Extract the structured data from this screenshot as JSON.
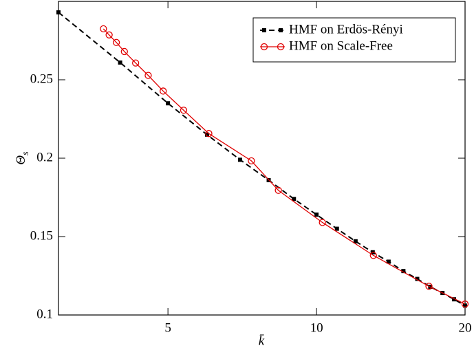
{
  "chart_data": {
    "type": "line",
    "xlabel": "k̄",
    "ylabel": "Θ",
    "ylabel_subscript": "s",
    "xscale": "log",
    "xlim": [
      3,
      20
    ],
    "xticks": [
      5,
      10,
      20
    ],
    "ylim": [
      0.1,
      0.3
    ],
    "yticks": [
      0.1,
      0.15,
      0.2,
      0.25
    ],
    "legend": "upper right",
    "series": [
      {
        "name": "HMF on Erdös-Rényi",
        "color": "#000000",
        "dash": true,
        "marker": "square",
        "x": [
          3,
          4,
          5,
          6,
          7,
          8,
          9,
          10,
          11,
          12,
          13,
          14,
          15,
          16,
          17,
          18,
          19,
          20
        ],
        "values": [
          0.293,
          0.261,
          0.235,
          0.215,
          0.199,
          0.186,
          0.174,
          0.164,
          0.155,
          0.147,
          0.14,
          0.134,
          0.128,
          0.123,
          0.118,
          0.114,
          0.11,
          0.106
        ]
      },
      {
        "name": "HMF on Scale-Free",
        "color": "#e00000",
        "dash": false,
        "marker": "circle",
        "x": [
          3.7,
          3.8,
          3.93,
          4.08,
          4.3,
          4.56,
          4.89,
          5.38,
          6.05,
          7.38,
          8.37,
          10.28,
          13.04,
          16.9,
          20
        ],
        "values": [
          0.2825,
          0.2786,
          0.2738,
          0.268,
          0.2607,
          0.2528,
          0.2428,
          0.2306,
          0.2157,
          0.1983,
          0.1795,
          0.159,
          0.138,
          0.1183,
          0.107
        ]
      }
    ]
  }
}
